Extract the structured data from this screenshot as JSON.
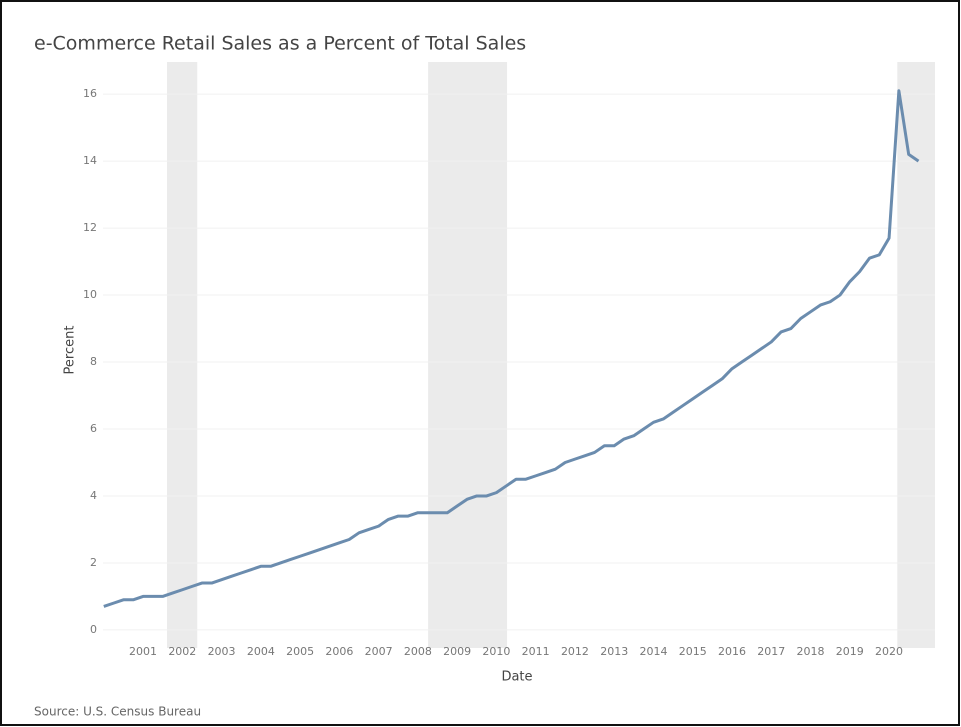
{
  "chart_data": {
    "type": "line",
    "title": "e-Commerce Retail Sales as a Percent of Total Sales",
    "x_label": "Date",
    "y_label": "Percent",
    "source": "Source: U.S. Census Bureau",
    "x": [
      2000,
      2000.25,
      2000.5,
      2000.75,
      2001,
      2001.25,
      2001.5,
      2001.75,
      2002,
      2002.25,
      2002.5,
      2002.75,
      2003,
      2003.25,
      2003.5,
      2003.75,
      2004,
      2004.25,
      2004.5,
      2004.75,
      2005,
      2005.25,
      2005.5,
      2005.75,
      2006,
      2006.25,
      2006.5,
      2006.75,
      2007,
      2007.25,
      2007.5,
      2007.75,
      2008,
      2008.25,
      2008.5,
      2008.75,
      2009,
      2009.25,
      2009.5,
      2009.75,
      2010,
      2010.25,
      2010.5,
      2010.75,
      2011,
      2011.25,
      2011.5,
      2011.75,
      2012,
      2012.25,
      2012.5,
      2012.75,
      2013,
      2013.25,
      2013.5,
      2013.75,
      2014,
      2014.25,
      2014.5,
      2014.75,
      2015,
      2015.25,
      2015.5,
      2015.75,
      2016,
      2016.25,
      2016.5,
      2016.75,
      2017,
      2017.25,
      2017.5,
      2017.75,
      2018,
      2018.25,
      2018.5,
      2018.75,
      2019,
      2019.25,
      2019.5,
      2019.75,
      2020,
      2020.25,
      2020.5,
      2020.75
    ],
    "series": [
      {
        "name": "Percent",
        "color": "#6b8cae",
        "values": [
          0.7,
          0.8,
          0.9,
          0.9,
          1.0,
          1.0,
          1.0,
          1.1,
          1.2,
          1.3,
          1.4,
          1.4,
          1.5,
          1.6,
          1.7,
          1.8,
          1.9,
          1.9,
          2.0,
          2.1,
          2.2,
          2.3,
          2.4,
          2.5,
          2.6,
          2.7,
          2.9,
          3.0,
          3.1,
          3.3,
          3.4,
          3.4,
          3.5,
          3.5,
          3.5,
          3.5,
          3.7,
          3.9,
          4.0,
          4.0,
          4.1,
          4.3,
          4.5,
          4.5,
          4.6,
          4.7,
          4.8,
          5.0,
          5.1,
          5.2,
          5.3,
          5.5,
          5.5,
          5.7,
          5.8,
          6.0,
          6.2,
          6.3,
          6.5,
          6.7,
          6.9,
          7.1,
          7.3,
          7.5,
          7.8,
          8.0,
          8.2,
          8.4,
          8.6,
          8.9,
          9.0,
          9.3,
          9.5,
          9.7,
          9.8,
          10.0,
          10.4,
          10.7,
          11.1,
          11.2,
          11.7,
          16.1,
          14.2,
          14.0
        ]
      }
    ],
    "recession_shading": [
      [
        2001.61,
        2002.38
      ],
      [
        2008.26,
        2010.27
      ],
      [
        2020.21,
        2021.17
      ]
    ],
    "shading_color": "#ebebeb",
    "xlim": [
      1999.98,
      2021.17
    ],
    "xticks": [
      2001,
      2002,
      2003,
      2004,
      2005,
      2006,
      2007,
      2008,
      2009,
      2010,
      2011,
      2012,
      2013,
      2014,
      2015,
      2016,
      2017,
      2018,
      2019,
      2020
    ],
    "ylim": [
      -0.54,
      16.96
    ],
    "yticks": [
      0,
      2,
      4,
      6,
      8,
      10,
      12,
      14,
      16
    ],
    "grid": true
  }
}
